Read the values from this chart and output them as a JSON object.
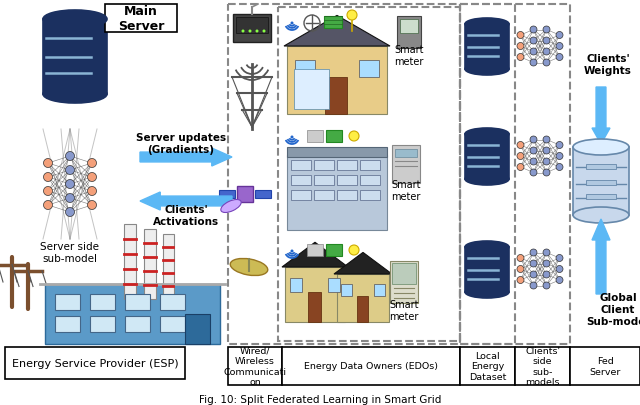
{
  "title": "Fig. 10: Split Federated Learning in Smart Grid",
  "bg_color": "#ffffff",
  "box_labels": {
    "esp": "Energy Service Provider (ESP)",
    "main_server": "Main\nServer",
    "wired": "Wired/\nWireless\nCommunicati\non",
    "edo": "Energy Data Owners (EDOs)",
    "local_energy": "Local\nEnergy\nDataset",
    "clients_side": "Clients'\nside\nsub-\nmodels",
    "fed_server": "Fed\nServer"
  },
  "arrow_labels": {
    "server_updates": "Server updates\n(Gradients)",
    "clients_activations": "Clients'\nActivations",
    "clients_weights": "Clients'\nWeights",
    "global_client": "Global\nClient\nSub-model"
  },
  "sub_labels": {
    "server_side": "Server side\nsub-model",
    "smart_meter1": "Smart\nmeter",
    "smart_meter2": "Smart\nmeter",
    "smart_meter3": "Smart\nmeter"
  },
  "colors": {
    "dark_blue": "#1b3060",
    "mid_blue": "#2e4fa3",
    "light_blue": "#5bb8f5",
    "arrow_blue": "#4db3e6",
    "db_line": "#8ab4d4",
    "dashed_border": "#888888",
    "node_orange": "#f4a07a",
    "node_blue": "#8899cc"
  },
  "layout": {
    "fig_w": 6.4,
    "fig_h": 4.06,
    "dpi": 100
  }
}
